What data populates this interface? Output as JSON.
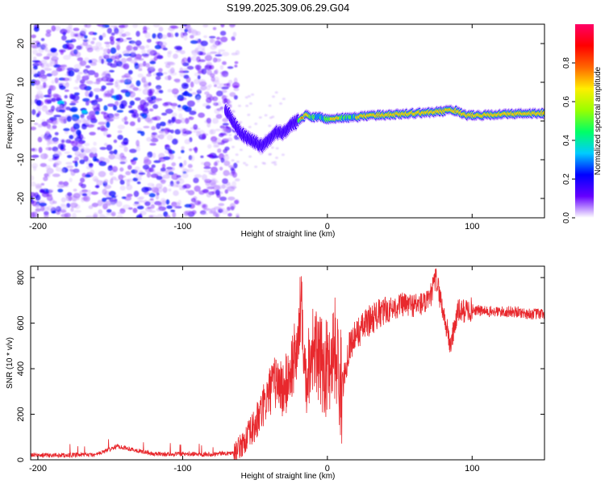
{
  "title": "S199.2025.309.06.29.G04",
  "chart_data": [
    {
      "type": "heatmap",
      "name": "spectrogram",
      "title": "S199.2025.309.06.29.G04",
      "xlabel": "Height of straight line (km)",
      "ylabel": "Frequency (Hz)",
      "xlim": [
        -205,
        150
      ],
      "ylim": [
        -25,
        25
      ],
      "xticks": [
        -200,
        -100,
        0,
        100
      ],
      "yticks": [
        -20,
        -10,
        0,
        10,
        20
      ],
      "grid": false,
      "colorbar": {
        "label": "Normalized spectral amplitude",
        "range": [
          0,
          1
        ],
        "ticks": [
          0.0,
          0.2,
          0.4,
          0.6,
          0.8
        ],
        "tick_labels": [
          "0.0",
          "0.2",
          "0.4",
          "0.6",
          "0.8"
        ],
        "colormap": [
          "#ffffff",
          "#6600ff",
          "#0000ff",
          "#00ccff",
          "#00ff66",
          "#99ff00",
          "#ffee00",
          "#ff6600",
          "#ff0000",
          "#ff0066"
        ]
      },
      "ridge": {
        "name": "dominant frequency",
        "x": [
          -70,
          -65,
          -60,
          -55,
          -50,
          -45,
          -40,
          -35,
          -30,
          -25,
          -20,
          -15,
          -10,
          -5,
          0,
          10,
          20,
          30,
          40,
          50,
          60,
          70,
          80,
          85,
          90,
          95,
          100,
          110,
          120,
          130,
          140,
          150
        ],
        "y": [
          3,
          0,
          -3,
          -4.5,
          -5.5,
          -6.5,
          -5,
          -3,
          -3,
          -1,
          0,
          1.5,
          1,
          1,
          0.5,
          0.8,
          1,
          1.5,
          1.5,
          1.8,
          2,
          2.2,
          2.5,
          3,
          2.5,
          1.5,
          1.5,
          1.5,
          1.8,
          1.8,
          2,
          2
        ]
      },
      "noise_region_x": [
        -205,
        -70
      ],
      "noise_band": {
        "x": [
          -195,
          -115
        ],
        "y": [
          1,
          7
        ],
        "label": ""
      }
    },
    {
      "type": "line",
      "name": "snr",
      "xlabel": "Height of straight line (km)",
      "ylabel": "SNR (10 * v/v)",
      "xlim": [
        -205,
        150
      ],
      "ylim": [
        0,
        850
      ],
      "xticks": [
        -200,
        -100,
        0,
        100
      ],
      "yticks": [
        0,
        200,
        400,
        600,
        800
      ],
      "grid": false,
      "color": "#e8282d",
      "series": [
        {
          "name": "SNR",
          "x": [
            -205,
            -180,
            -160,
            -145,
            -120,
            -100,
            -80,
            -65,
            -60,
            -55,
            -50,
            -45,
            -40,
            -35,
            -30,
            -25,
            -20,
            -18,
            -15,
            -12,
            -10,
            -5,
            0,
            5,
            10,
            15,
            20,
            30,
            40,
            50,
            60,
            70,
            75,
            80,
            85,
            90,
            100,
            110,
            120,
            130,
            140,
            150
          ],
          "y": [
            20,
            20,
            22,
            60,
            25,
            25,
            25,
            30,
            60,
            100,
            150,
            220,
            300,
            350,
            300,
            400,
            500,
            750,
            350,
            450,
            500,
            420,
            400,
            500,
            300,
            500,
            550,
            620,
            650,
            680,
            680,
            690,
            800,
            650,
            500,
            650,
            660,
            650,
            650,
            650,
            640,
            640
          ]
        }
      ]
    }
  ]
}
